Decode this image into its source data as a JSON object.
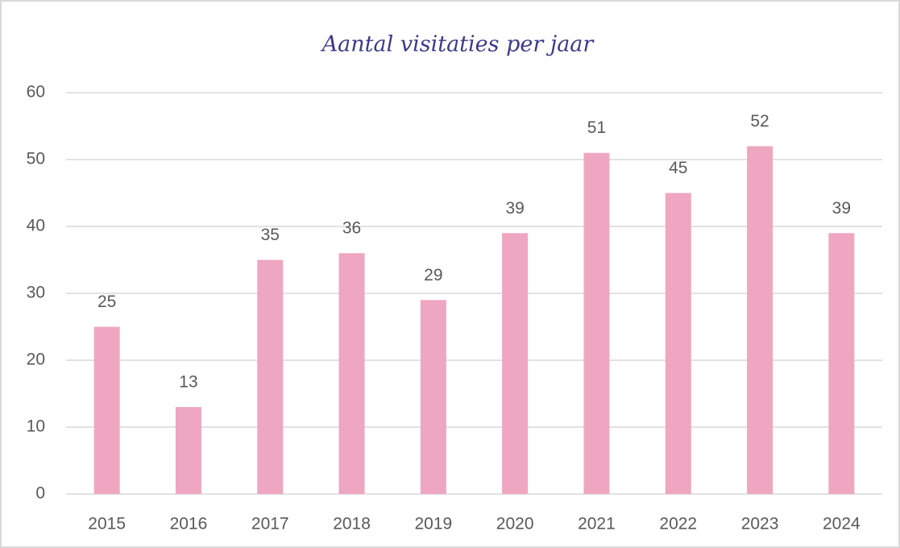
{
  "chart_data": {
    "type": "bar",
    "title": "Aantal visitaties per jaar",
    "categories": [
      "2015",
      "2016",
      "2017",
      "2018",
      "2019",
      "2020",
      "2021",
      "2022",
      "2023",
      "2024"
    ],
    "values": [
      25,
      13,
      35,
      36,
      29,
      39,
      51,
      45,
      52,
      39
    ],
    "color": "#efa6c1",
    "ylim": [
      0,
      60
    ],
    "yticks": [
      0,
      10,
      20,
      30,
      40,
      50,
      60
    ],
    "grid": true,
    "data_labels": true
  }
}
